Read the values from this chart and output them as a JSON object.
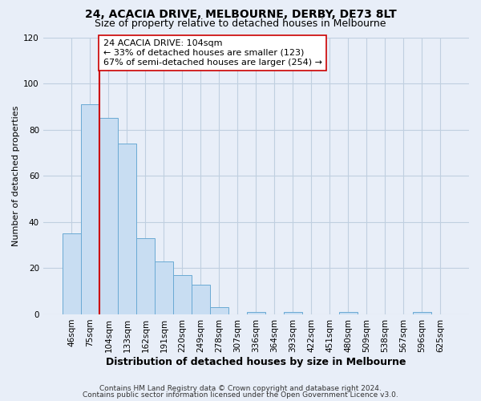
{
  "title": "24, ACACIA DRIVE, MELBOURNE, DERBY, DE73 8LT",
  "subtitle": "Size of property relative to detached houses in Melbourne",
  "xlabel": "Distribution of detached houses by size in Melbourne",
  "ylabel": "Number of detached properties",
  "bar_labels": [
    "46sqm",
    "75sqm",
    "104sqm",
    "133sqm",
    "162sqm",
    "191sqm",
    "220sqm",
    "249sqm",
    "278sqm",
    "307sqm",
    "336sqm",
    "364sqm",
    "393sqm",
    "422sqm",
    "451sqm",
    "480sqm",
    "509sqm",
    "538sqm",
    "567sqm",
    "596sqm",
    "625sqm"
  ],
  "bar_heights": [
    35,
    91,
    85,
    74,
    33,
    23,
    17,
    13,
    3,
    0,
    1,
    0,
    1,
    0,
    0,
    1,
    0,
    0,
    0,
    1,
    0
  ],
  "bar_color": "#c8ddf2",
  "bar_edge_color": "#6aaad4",
  "vline_x_idx": 2,
  "vline_color": "#cc0000",
  "annotation_text": "24 ACACIA DRIVE: 104sqm\n← 33% of detached houses are smaller (123)\n67% of semi-detached houses are larger (254) →",
  "annotation_box_color": "white",
  "annotation_box_edge_color": "#cc0000",
  "ylim": [
    0,
    120
  ],
  "yticks": [
    0,
    20,
    40,
    60,
    80,
    100,
    120
  ],
  "footer_line1": "Contains HM Land Registry data © Crown copyright and database right 2024.",
  "footer_line2": "Contains public sector information licensed under the Open Government Licence v3.0.",
  "bg_color": "#e8eef8",
  "plot_bg_color": "#e8eef8",
  "grid_color": "#c0cfe0",
  "title_fontsize": 10,
  "subtitle_fontsize": 9,
  "xlabel_fontsize": 9,
  "ylabel_fontsize": 8,
  "tick_fontsize": 7.5,
  "annotation_fontsize": 8,
  "footer_fontsize": 6.5
}
